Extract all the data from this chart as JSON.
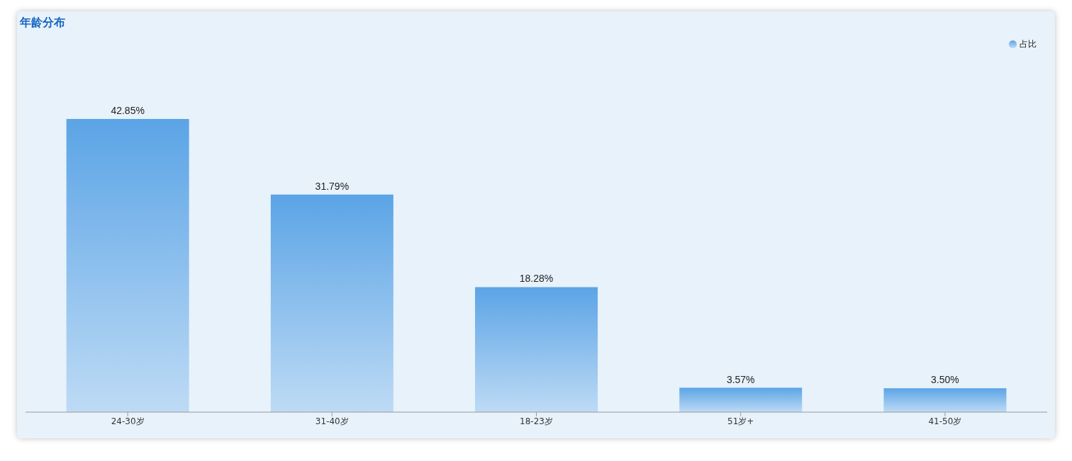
{
  "chart_data": {
    "type": "bar",
    "title": "年龄分布",
    "categories": [
      "24-30岁",
      "31-40岁",
      "18-23岁",
      "51岁+",
      "41-50岁"
    ],
    "series": [
      {
        "name": "占比",
        "color": "#5ba4e6",
        "values": [
          42.85,
          31.79,
          18.28,
          3.57,
          3.5
        ],
        "value_labels": [
          "42.85%",
          "31.79%",
          "18.28%",
          "3.57%",
          "3.50%"
        ]
      }
    ],
    "legend": "top right",
    "grid": false
  }
}
